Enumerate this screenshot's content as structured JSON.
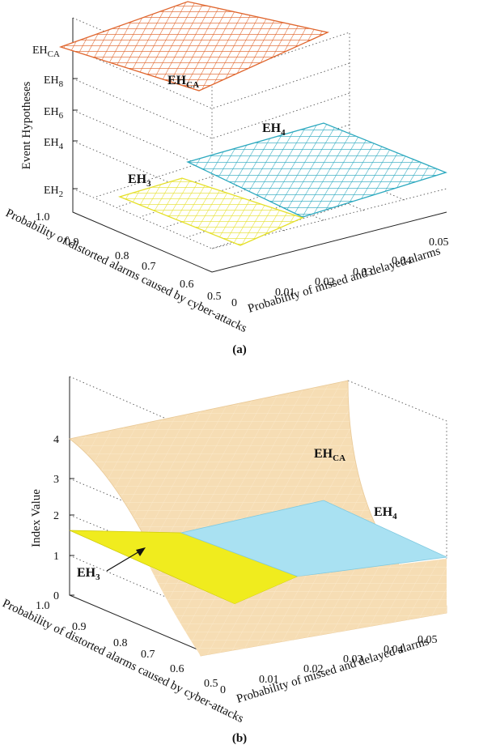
{
  "chart_data": [
    {
      "type": "surface3d",
      "panel": "(a)",
      "zlabel": "Event Hypotheses",
      "xlabel": "Probability of missed and delayed alarms",
      "ylabel": "Probability of distorted alarms caused by cyber-attacks",
      "xlim": [
        0,
        0.05
      ],
      "ylim": [
        0.5,
        1.0
      ],
      "xticks": [
        "0",
        "0.01",
        "0.02",
        "0.03",
        "0.04",
        "0.05"
      ],
      "yticks": [
        "0.5",
        "0.6",
        "0.7",
        "0.8",
        "0.9",
        "1.0"
      ],
      "zticks": [
        {
          "main": "EH",
          "sub": "2"
        },
        {
          "main": "EH",
          "sub": "4"
        },
        {
          "main": "EH",
          "sub": "6"
        },
        {
          "main": "EH",
          "sub": "8"
        },
        {
          "main": "EH",
          "sub": "CA"
        }
      ],
      "regions": [
        {
          "main": "EH",
          "sub": "CA",
          "color": "#E0662E",
          "level": "EH_CA"
        },
        {
          "main": "EH",
          "sub": "4",
          "color": "#2CA9BF",
          "level": "EH_4"
        },
        {
          "main": "EH",
          "sub": "3",
          "color": "#E5E02A",
          "level": "EH_3"
        }
      ]
    },
    {
      "type": "surface3d",
      "panel": "(b)",
      "zlabel": "Index Value",
      "xlabel": "Probability of missed and delayed alarms",
      "ylabel": "Probability of distorted alarms caused by cyber-attacks",
      "xlim": [
        0,
        0.05
      ],
      "ylim": [
        0.5,
        1.0
      ],
      "zlim": [
        0,
        4
      ],
      "xticks": [
        "0",
        "0.01",
        "0.02",
        "0.03",
        "0.04",
        "0.05"
      ],
      "yticks": [
        "0.5",
        "0.6",
        "0.7",
        "0.8",
        "0.9",
        "1.0"
      ],
      "zticks": [
        "0",
        "1",
        "2",
        "3",
        "4"
      ],
      "surfaces": [
        {
          "main": "EH",
          "sub": "CA",
          "color": "#F6DDB4",
          "index_at_x0": 4.0,
          "index_at_x005": 0.0
        },
        {
          "main": "EH",
          "sub": "4",
          "color": "#A9E1F2",
          "index_value": 1.65
        },
        {
          "main": "EH",
          "sub": "3",
          "color": "#F0EC1E",
          "index_value": 1.65
        }
      ],
      "annotation": {
        "main": "EH",
        "sub": "3"
      }
    }
  ],
  "captions": {
    "a": "(a)",
    "b": "(b)"
  }
}
